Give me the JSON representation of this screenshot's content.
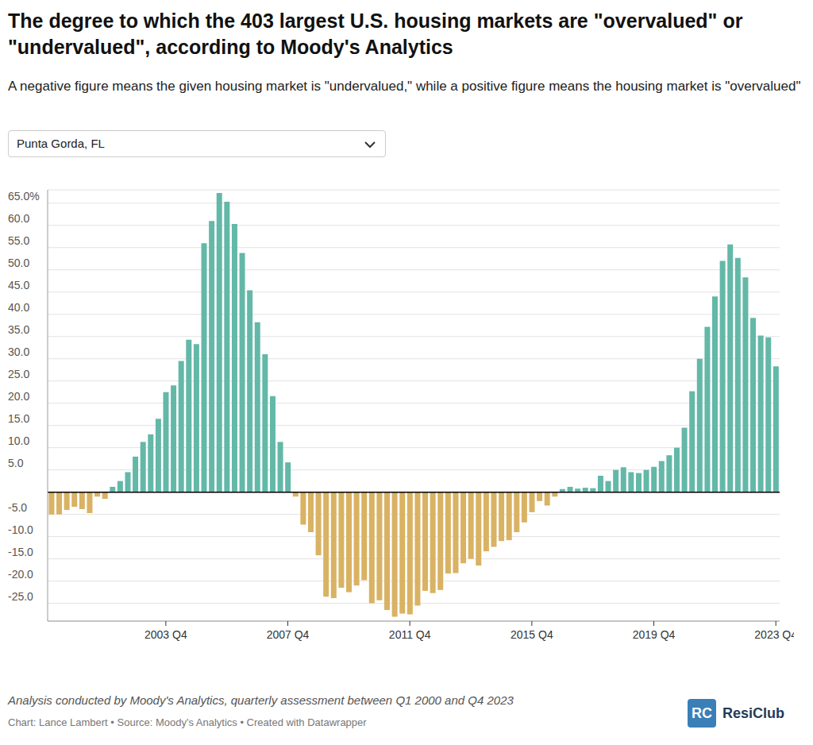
{
  "chart_data": {
    "type": "bar",
    "title": "The degree to which the 403 largest U.S. housing markets are \"overvalued\" or \"undervalued\", according to Moody's Analytics",
    "subtitle": "A negative figure means the given housing market is \"undervalued,\" while a positive figure means the housing market is \"overvalued\"",
    "selector": "Punta Gorda, FL",
    "notes": "Analysis conducted by Moody's Analytics, quarterly assessment between Q1 2000 and Q4 2023",
    "source": "Chart: Lance Lambert • Source: Moody's Analytics • Created with Datawrapper",
    "logo_mark": "RC",
    "logo": "ResiClub",
    "categories": [
      null,
      null,
      null,
      null,
      null,
      null,
      null,
      null,
      null,
      null,
      null,
      null,
      null,
      null,
      null,
      "2003 Q4",
      null,
      null,
      null,
      null,
      null,
      null,
      null,
      null,
      null,
      null,
      null,
      null,
      null,
      null,
      null,
      "2007 Q4",
      null,
      null,
      null,
      null,
      null,
      null,
      null,
      null,
      null,
      null,
      null,
      null,
      null,
      null,
      null,
      "2011 Q4",
      null,
      null,
      null,
      null,
      null,
      null,
      null,
      null,
      null,
      null,
      null,
      null,
      null,
      null,
      null,
      "2015 Q4",
      null,
      null,
      null,
      null,
      null,
      null,
      null,
      null,
      null,
      null,
      null,
      null,
      null,
      null,
      null,
      "2019 Q4",
      null,
      null,
      null,
      null,
      null,
      null,
      null,
      null,
      null,
      null,
      null,
      null,
      null,
      null,
      null,
      "2023 Q4"
    ],
    "values": [
      -5,
      -5,
      -4,
      -3.3,
      -3.8,
      -4.7,
      -1,
      -1.5,
      1.2,
      2.5,
      4.5,
      8,
      11.3,
      13,
      16.5,
      22.5,
      24,
      29.5,
      34.3,
      33.3,
      56,
      61,
      67.3,
      65.3,
      60.3,
      53.8,
      45.4,
      38.2,
      31,
      21.6,
      11.3,
      6.7,
      -1,
      -7.3,
      -9,
      -14.2,
      -23.5,
      -23.8,
      -21.5,
      -22.5,
      -21,
      -19.8,
      -25,
      -24.3,
      -26.5,
      -28,
      -27.3,
      -27.5,
      -25.5,
      -22.2,
      -22.7,
      -22,
      -18.3,
      -18.2,
      -16,
      -15,
      -16.5,
      -13.3,
      -12.3,
      -11,
      -10.8,
      -9,
      -6.8,
      -4.5,
      -2,
      -3,
      -1,
      0.7,
      1.2,
      0.8,
      1,
      0.9,
      3.7,
      2.5,
      5,
      5.6,
      4.5,
      4.3,
      5,
      5.7,
      7,
      8.3,
      10,
      14.5,
      22.7,
      30,
      37.2,
      44,
      52,
      55.7,
      52.7,
      48.3,
      39.2,
      35.2,
      34.8,
      28.3
    ],
    "colors": [
      "#d9b263",
      "#d9b263",
      "#d9b263",
      "#d9b263",
      "#d9b263",
      "#d9b263",
      "#d9b263",
      "#d9b263",
      "#63b8a8",
      "#63b8a8",
      "#63b8a8",
      "#63b8a8",
      "#63b8a8",
      "#63b8a8",
      "#63b8a8",
      "#63b8a8",
      "#63b8a8",
      "#63b8a8",
      "#63b8a8",
      "#63b8a8",
      "#63b8a8",
      "#63b8a8",
      "#63b8a8",
      "#63b8a8",
      "#63b8a8",
      "#63b8a8",
      "#63b8a8",
      "#63b8a8",
      "#63b8a8",
      "#63b8a8",
      "#63b8a8",
      "#63b8a8",
      "#d9b263",
      "#d9b263",
      "#d9b263",
      "#d9b263",
      "#d9b263",
      "#d9b263",
      "#d9b263",
      "#d9b263",
      "#d9b263",
      "#d9b263",
      "#d9b263",
      "#d9b263",
      "#d9b263",
      "#d9b263",
      "#d9b263",
      "#d9b263",
      "#d9b263",
      "#d9b263",
      "#d9b263",
      "#d9b263",
      "#d9b263",
      "#d9b263",
      "#d9b263",
      "#d9b263",
      "#d9b263",
      "#d9b263",
      "#d9b263",
      "#d9b263",
      "#d9b263",
      "#d9b263",
      "#d9b263",
      "#d9b263",
      "#d9b263",
      "#d9b263",
      "#d9b263",
      "#63b8a8",
      "#63b8a8",
      "#63b8a8",
      "#63b8a8",
      "#63b8a8",
      "#63b8a8",
      "#63b8a8",
      "#63b8a8",
      "#63b8a8",
      "#63b8a8",
      "#63b8a8",
      "#63b8a8",
      "#63b8a8",
      "#63b8a8",
      "#63b8a8",
      "#63b8a8",
      "#63b8a8",
      "#63b8a8",
      "#63b8a8",
      "#63b8a8",
      "#63b8a8",
      "#63b8a8",
      "#63b8a8",
      "#63b8a8",
      "#63b8a8",
      "#63b8a8",
      "#63b8a8",
      "#63b8a8",
      "#63b8a8"
    ],
    "ylim": [
      -29,
      68
    ],
    "yticks": [
      {
        "value": 65,
        "label": "65.0%"
      },
      {
        "value": 60,
        "label": "60.0"
      },
      {
        "value": 55,
        "label": "55.0"
      },
      {
        "value": 50,
        "label": "50.0"
      },
      {
        "value": 45,
        "label": "45.0"
      },
      {
        "value": 40,
        "label": "40.0"
      },
      {
        "value": 35,
        "label": "35.0"
      },
      {
        "value": 30,
        "label": "30.0"
      },
      {
        "value": 25,
        "label": "25.0"
      },
      {
        "value": 20,
        "label": "20.0"
      },
      {
        "value": 15,
        "label": "15.0"
      },
      {
        "value": 10,
        "label": "10.0"
      },
      {
        "value": 5,
        "label": "5.0"
      },
      {
        "value": -5,
        "label": "-5.0"
      },
      {
        "value": -10,
        "label": "-10.0"
      },
      {
        "value": -15,
        "label": "-15.0"
      },
      {
        "value": -20,
        "label": "-20.0"
      },
      {
        "value": -25,
        "label": "-25.0"
      }
    ],
    "grid": true
  }
}
